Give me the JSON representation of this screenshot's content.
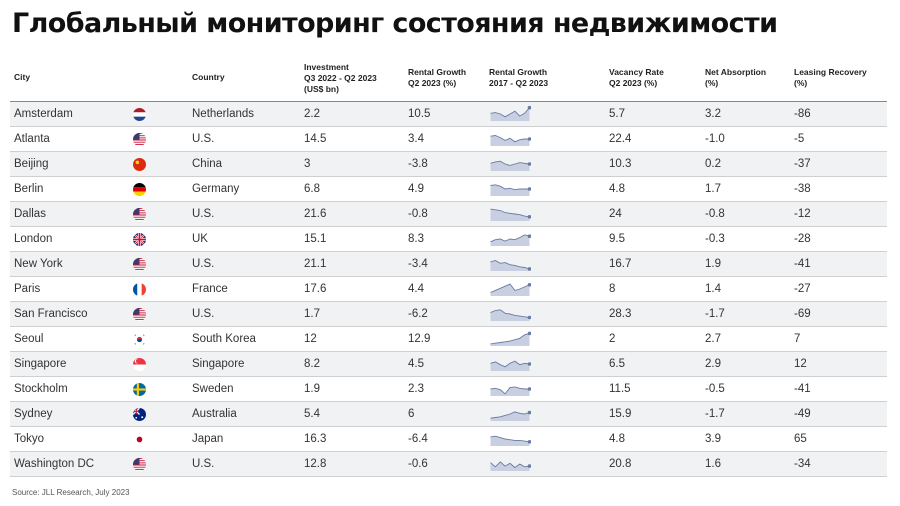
{
  "title": "Глобальный мониторинг состояния недвижимости",
  "source": "Source: JLL Research, July 2023",
  "colors": {
    "spark_fill": "#c7cfe1",
    "spark_line": "#6a7ba3",
    "row_shade": "#f1f2f4"
  },
  "chart_data": {
    "type": "table",
    "columns": [
      "City",
      "Country",
      "Investment\nQ3 2022 - Q2 2023\n(US$ bn)",
      "Rental Growth\nQ2 2023 (%)",
      "Rental Growth\n2017 - Q2 2023",
      "Vacancy Rate\nQ2 2023 (%)",
      "Net Absorption\n(%)",
      "Leasing Recovery\n(%)"
    ],
    "rows": [
      {
        "city": "Amsterdam",
        "flag": "nl",
        "country": "Netherlands",
        "investment": "2.2",
        "rental_growth": "10.5",
        "vacancy": "5.7",
        "absorption": "3.2",
        "leasing": "-86",
        "trend": [
          0.55,
          0.6,
          0.5,
          0.3,
          0.5,
          0.7,
          0.35,
          0.55,
          0.95
        ]
      },
      {
        "city": "Atlanta",
        "flag": "us",
        "country": "U.S.",
        "investment": "14.5",
        "rental_growth": "3.4",
        "vacancy": "22.4",
        "absorption": "-1.0",
        "leasing": "-5",
        "trend": [
          0.7,
          0.75,
          0.6,
          0.4,
          0.55,
          0.3,
          0.45,
          0.5,
          0.5
        ]
      },
      {
        "city": "Beijing",
        "flag": "cn",
        "country": "China",
        "investment": "3",
        "rental_growth": "-3.8",
        "vacancy": "10.3",
        "absorption": "0.2",
        "leasing": "-37",
        "trend": [
          0.55,
          0.65,
          0.7,
          0.5,
          0.4,
          0.5,
          0.6,
          0.55,
          0.5
        ]
      },
      {
        "city": "Berlin",
        "flag": "de",
        "country": "Germany",
        "investment": "6.8",
        "rental_growth": "4.9",
        "vacancy": "4.8",
        "absorption": "1.7",
        "leasing": "-38",
        "trend": [
          0.75,
          0.8,
          0.7,
          0.5,
          0.55,
          0.45,
          0.5,
          0.5,
          0.5
        ]
      },
      {
        "city": "Dallas",
        "flag": "us",
        "country": "U.S.",
        "investment": "21.6",
        "rental_growth": "-0.8",
        "vacancy": "24",
        "absorption": "-0.8",
        "leasing": "-12",
        "trend": [
          0.85,
          0.8,
          0.75,
          0.6,
          0.55,
          0.5,
          0.45,
          0.35,
          0.3
        ]
      },
      {
        "city": "London",
        "flag": "gb",
        "country": "UK",
        "investment": "15.1",
        "rental_growth": "8.3",
        "vacancy": "9.5",
        "absorption": "-0.3",
        "leasing": "-28",
        "trend": [
          0.3,
          0.45,
          0.5,
          0.35,
          0.5,
          0.45,
          0.6,
          0.8,
          0.7
        ]
      },
      {
        "city": "New York",
        "flag": "us",
        "country": "U.S.",
        "investment": "21.1",
        "rental_growth": "-3.4",
        "vacancy": "16.7",
        "absorption": "1.9",
        "leasing": "-41",
        "trend": [
          0.65,
          0.75,
          0.55,
          0.6,
          0.45,
          0.4,
          0.3,
          0.25,
          0.15
        ]
      },
      {
        "city": "Paris",
        "flag": "fr",
        "country": "France",
        "investment": "17.6",
        "rental_growth": "4.4",
        "vacancy": "8",
        "absorption": "1.4",
        "leasing": "-27",
        "trend": [
          0.25,
          0.4,
          0.55,
          0.7,
          0.85,
          0.4,
          0.5,
          0.65,
          0.8
        ]
      },
      {
        "city": "San Francisco",
        "flag": "us",
        "country": "U.S.",
        "investment": "1.7",
        "rental_growth": "-6.2",
        "vacancy": "28.3",
        "absorption": "-1.7",
        "leasing": "-69",
        "trend": [
          0.6,
          0.75,
          0.8,
          0.55,
          0.5,
          0.4,
          0.35,
          0.3,
          0.25
        ]
      },
      {
        "city": "Seoul",
        "flag": "kr",
        "country": "South Korea",
        "investment": "12",
        "rental_growth": "12.9",
        "vacancy": "2",
        "absorption": "2.7",
        "leasing": "7",
        "trend": [
          0.15,
          0.2,
          0.25,
          0.3,
          0.35,
          0.45,
          0.55,
          0.8,
          0.9
        ]
      },
      {
        "city": "Singapore",
        "flag": "sg",
        "country": "Singapore",
        "investment": "8.2",
        "rental_growth": "4.5",
        "vacancy": "6.5",
        "absorption": "2.9",
        "leasing": "12",
        "trend": [
          0.55,
          0.65,
          0.45,
          0.3,
          0.55,
          0.7,
          0.45,
          0.55,
          0.5
        ]
      },
      {
        "city": "Stockholm",
        "flag": "se",
        "country": "Sweden",
        "investment": "1.9",
        "rental_growth": "2.3",
        "vacancy": "11.5",
        "absorption": "-0.5",
        "leasing": "-41",
        "trend": [
          0.5,
          0.55,
          0.45,
          0.15,
          0.6,
          0.65,
          0.55,
          0.5,
          0.5
        ]
      },
      {
        "city": "Sydney",
        "flag": "au",
        "country": "Australia",
        "investment": "5.4",
        "rental_growth": "6",
        "vacancy": "15.9",
        "absorption": "-1.7",
        "leasing": "-49",
        "trend": [
          0.2,
          0.25,
          0.3,
          0.4,
          0.5,
          0.65,
          0.55,
          0.5,
          0.6
        ]
      },
      {
        "city": "Tokyo",
        "flag": "jp",
        "country": "Japan",
        "investment": "16.3",
        "rental_growth": "-6.4",
        "vacancy": "4.8",
        "absorption": "3.9",
        "leasing": "65",
        "trend": [
          0.65,
          0.7,
          0.6,
          0.5,
          0.45,
          0.4,
          0.4,
          0.35,
          0.3
        ]
      },
      {
        "city": "Washington DC",
        "flag": "us",
        "country": "U.S.",
        "investment": "12.8",
        "rental_growth": "-0.6",
        "vacancy": "20.8",
        "absorption": "1.6",
        "leasing": "-34",
        "trend": [
          0.6,
          0.3,
          0.65,
          0.35,
          0.55,
          0.25,
          0.5,
          0.3,
          0.35
        ]
      }
    ]
  }
}
